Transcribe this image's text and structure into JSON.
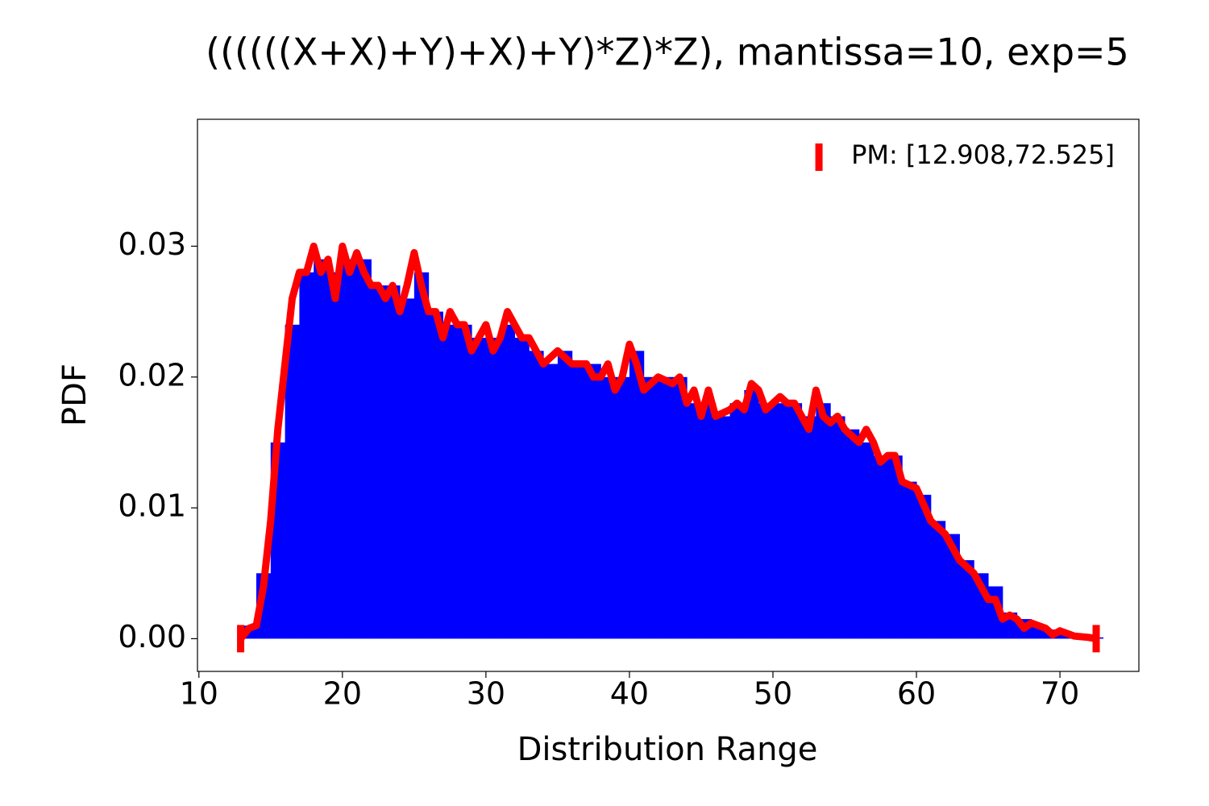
{
  "chart_data": {
    "type": "histogram",
    "title": "((((((X+X)+Y)+X)+Y)*Z)*Z), mantissa=10, exp=5",
    "xlabel": "Distribution Range",
    "ylabel": "PDF",
    "color": "#0000ff",
    "bins": [
      13,
      14,
      15,
      16,
      17,
      18,
      19,
      20,
      21,
      22,
      23,
      24,
      25,
      26,
      27,
      28,
      29,
      30,
      31,
      32,
      33,
      34,
      35,
      36,
      37,
      38,
      39,
      40,
      41,
      42,
      43,
      44,
      45,
      46,
      47,
      48,
      49,
      50,
      51,
      52,
      53,
      54,
      55,
      56,
      57,
      58,
      59,
      60,
      61,
      62,
      63,
      64,
      65,
      66,
      67,
      68,
      69,
      70,
      71,
      72,
      73
    ],
    "values": [
      0.001,
      0.005,
      0.015,
      0.024,
      0.028,
      0.029,
      0.028,
      0.029,
      0.029,
      0.027,
      0.027,
      0.026,
      0.028,
      0.025,
      0.024,
      0.024,
      0.023,
      0.023,
      0.024,
      0.023,
      0.022,
      0.021,
      0.022,
      0.021,
      0.021,
      0.02,
      0.02,
      0.022,
      0.02,
      0.02,
      0.02,
      0.018,
      0.018,
      0.017,
      0.018,
      0.019,
      0.018,
      0.018,
      0.018,
      0.017,
      0.018,
      0.017,
      0.016,
      0.015,
      0.014,
      0.014,
      0.012,
      0.011,
      0.009,
      0.008,
      0.006,
      0.005,
      0.004,
      0.002,
      0.0015,
      0.001,
      0.0007,
      0.0004,
      0.0002,
      0.0001
    ],
    "line": {
      "name": "PM: [12.908,72.525]",
      "color": "#ff0000",
      "x": [
        12.908,
        13.5,
        14,
        14.5,
        15,
        15.5,
        16,
        16.5,
        17,
        17.5,
        18,
        18.5,
        19,
        19.5,
        20,
        20.5,
        21,
        21.5,
        22,
        22.5,
        23,
        23.5,
        24,
        24.5,
        25,
        25.5,
        26,
        26.5,
        27,
        27.5,
        28,
        28.5,
        29,
        29.5,
        30,
        30.5,
        31,
        31.5,
        32,
        32.5,
        33,
        34,
        35,
        36,
        37,
        37.5,
        38,
        38.5,
        39,
        39.5,
        40,
        40.5,
        41,
        42,
        43,
        43.5,
        44,
        44.5,
        45,
        45.5,
        46,
        47,
        47.5,
        48,
        48.5,
        49,
        49.5,
        50,
        50.5,
        51,
        51.5,
        52,
        52.5,
        53,
        53.5,
        54,
        54.5,
        55,
        56,
        56.5,
        57,
        57.5,
        58,
        58.5,
        59,
        60,
        61,
        62,
        63,
        64,
        65,
        65.5,
        66,
        66.5,
        67,
        67.5,
        68,
        69,
        69.5,
        70,
        71,
        72,
        72.525
      ],
      "values": [
        0,
        0.0008,
        0.001,
        0.004,
        0.009,
        0.016,
        0.021,
        0.026,
        0.028,
        0.028,
        0.03,
        0.028,
        0.029,
        0.026,
        0.03,
        0.028,
        0.0295,
        0.028,
        0.027,
        0.027,
        0.026,
        0.027,
        0.025,
        0.027,
        0.0295,
        0.027,
        0.025,
        0.025,
        0.023,
        0.025,
        0.024,
        0.024,
        0.022,
        0.023,
        0.024,
        0.022,
        0.023,
        0.025,
        0.024,
        0.023,
        0.023,
        0.021,
        0.022,
        0.021,
        0.021,
        0.02,
        0.02,
        0.021,
        0.019,
        0.02,
        0.0225,
        0.021,
        0.019,
        0.02,
        0.0195,
        0.02,
        0.018,
        0.019,
        0.017,
        0.019,
        0.017,
        0.0175,
        0.018,
        0.0175,
        0.0195,
        0.019,
        0.0175,
        0.018,
        0.0185,
        0.018,
        0.018,
        0.017,
        0.016,
        0.019,
        0.017,
        0.0165,
        0.017,
        0.016,
        0.015,
        0.016,
        0.015,
        0.0135,
        0.014,
        0.014,
        0.012,
        0.0115,
        0.009,
        0.008,
        0.006,
        0.005,
        0.003,
        0.003,
        0.0015,
        0.0018,
        0.0015,
        0.0008,
        0.0012,
        0.0008,
        0.0003,
        0.0006,
        0.0002,
        0.0001,
        0
      ]
    },
    "legend": "upper right",
    "xlim": [
      9.9,
      75.5
    ],
    "ylim": [
      -0.0025,
      0.0397
    ],
    "xticks": [
      10,
      20,
      30,
      40,
      50,
      60,
      70
    ],
    "yticks": [
      {
        "value": 0,
        "label": "0.00"
      },
      0.01,
      0.02,
      0.03
    ]
  }
}
